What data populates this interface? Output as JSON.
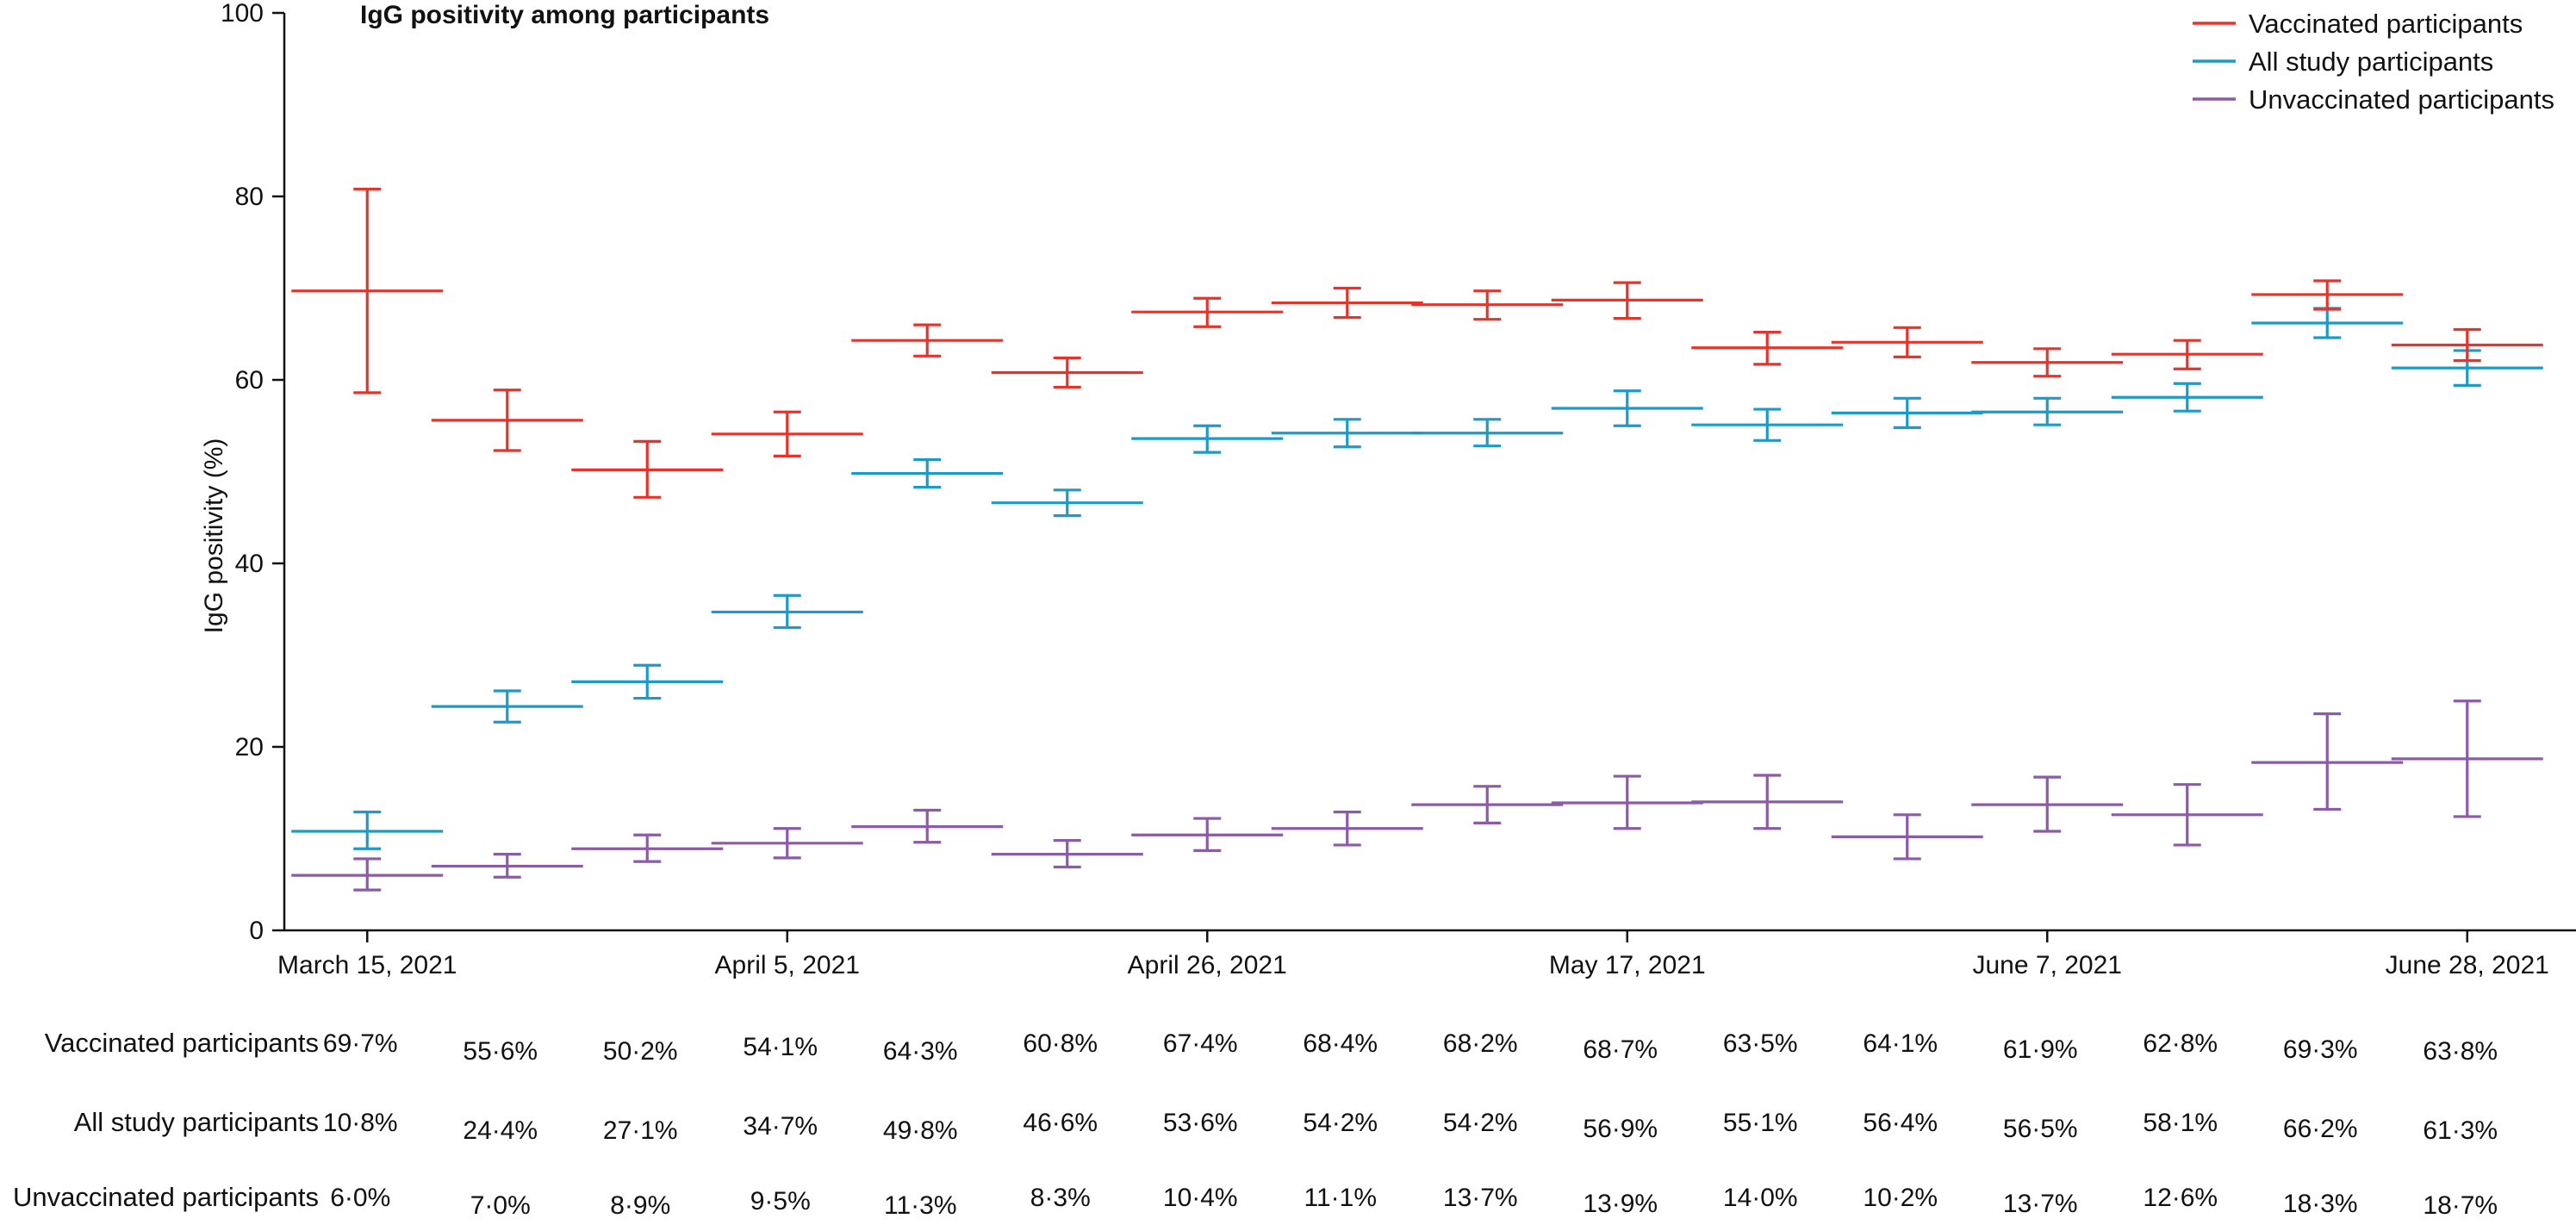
{
  "chart_data": {
    "type": "line",
    "title": "IgG positivity among participants",
    "ylabel": "IgG positivity (%)",
    "xlabel": "",
    "ylim": [
      0,
      100
    ],
    "y_ticks": [
      "0",
      "20",
      "40",
      "60",
      "80",
      "100"
    ],
    "x_ticks": [
      "March 15, 2021",
      "April 5, 2021",
      "April 26, 2021",
      "May 17, 2021",
      "June 7, 2021",
      "June 28, 2021"
    ],
    "x_tick_week_index": [
      0,
      3,
      6,
      9,
      12,
      15
    ],
    "grid": false,
    "legend_placement": "top-right",
    "display": "weekly horizontal segments with vertical 95% CI error bars",
    "series": [
      {
        "name": "Vaccinated participants",
        "color": "#e8332a",
        "values": [
          69.7,
          55.6,
          50.2,
          54.1,
          64.3,
          60.8,
          67.4,
          68.4,
          68.2,
          68.7,
          63.5,
          64.1,
          61.9,
          62.8,
          69.3,
          63.8
        ],
        "lower": [
          58.6,
          52.3,
          47.2,
          51.7,
          62.6,
          59.2,
          65.8,
          66.8,
          66.6,
          66.7,
          61.7,
          62.5,
          60.4,
          61.2,
          67.7,
          62.1
        ],
        "upper": [
          80.8,
          58.9,
          53.3,
          56.5,
          66.0,
          62.4,
          68.9,
          70.0,
          69.7,
          70.6,
          65.2,
          65.7,
          63.4,
          64.3,
          70.8,
          65.5
        ],
        "labels": [
          "69·7%",
          "55·6%",
          "50·2%",
          "54·1%",
          "64·3%",
          "60·8%",
          "67·4%",
          "68·4%",
          "68·2%",
          "68·7%",
          "63·5%",
          "64·1%",
          "61·9%",
          "62·8%",
          "69·3%",
          "63·8%"
        ]
      },
      {
        "name": "All study participants",
        "color": "#1c9ac9",
        "values": [
          10.8,
          24.4,
          27.1,
          34.7,
          49.8,
          46.6,
          53.6,
          54.2,
          54.2,
          56.9,
          55.1,
          56.4,
          56.5,
          58.1,
          66.2,
          61.3
        ],
        "lower": [
          8.9,
          22.7,
          25.3,
          33.0,
          48.3,
          45.2,
          52.1,
          52.7,
          52.8,
          55.0,
          53.4,
          54.8,
          55.1,
          56.6,
          64.6,
          59.4
        ],
        "upper": [
          12.9,
          26.1,
          28.9,
          36.5,
          51.3,
          48.0,
          55.0,
          55.7,
          55.7,
          58.8,
          56.8,
          58.0,
          58.0,
          59.6,
          67.8,
          63.2
        ],
        "labels": [
          "10·8%",
          "24·4%",
          "27·1%",
          "34·7%",
          "49·8%",
          "46·6%",
          "53·6%",
          "54·2%",
          "54·2%",
          "56·9%",
          "55·1%",
          "56·4%",
          "56·5%",
          "58·1%",
          "66·2%",
          "61·3%"
        ]
      },
      {
        "name": "Unvaccinated participants",
        "color": "#8b5aa8",
        "values": [
          6.0,
          7.0,
          8.9,
          9.5,
          11.3,
          8.3,
          10.4,
          11.1,
          13.7,
          13.9,
          14.0,
          10.2,
          13.7,
          12.6,
          18.3,
          18.7
        ],
        "lower": [
          4.4,
          5.8,
          7.5,
          7.9,
          9.6,
          6.9,
          8.7,
          9.3,
          11.7,
          11.1,
          11.1,
          7.8,
          10.8,
          9.3,
          13.2,
          12.4
        ],
        "upper": [
          7.8,
          8.3,
          10.4,
          11.1,
          13.1,
          9.8,
          12.2,
          12.9,
          15.7,
          16.8,
          16.9,
          12.6,
          16.7,
          15.9,
          23.6,
          25.0
        ],
        "labels": [
          "6·0%",
          "7·0%",
          "8·9%",
          "9·5%",
          "11·3%",
          "8·3%",
          "10·4%",
          "11·1%",
          "13·7%",
          "13·9%",
          "14·0%",
          "10·2%",
          "13·7%",
          "12·6%",
          "18·3%",
          "18·7%"
        ]
      }
    ]
  }
}
